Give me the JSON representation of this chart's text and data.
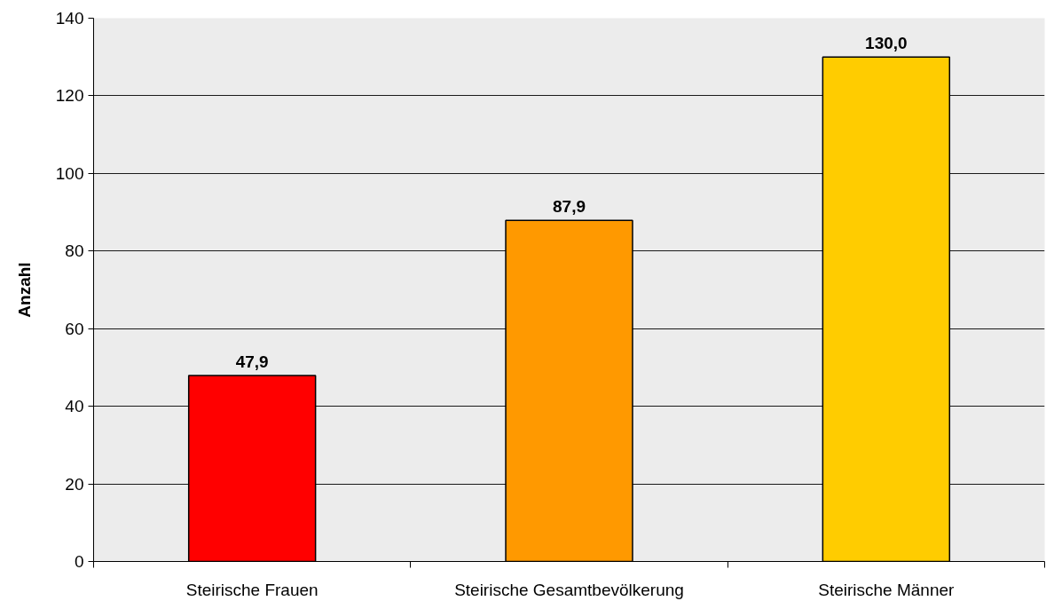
{
  "chart_data": {
    "type": "bar",
    "ylabel": "Anzahl",
    "categories": [
      "Steirische Frauen",
      "Steirische Gesamtbevölkerung",
      "Steirische Männer"
    ],
    "values": [
      47.9,
      87.9,
      130.0
    ],
    "colors": [
      "#ff0000",
      "#ff9900",
      "#ffcc00"
    ],
    "value_labels": [
      "47,9",
      "87,9",
      "130,0"
    ],
    "ylim": [
      0,
      140
    ],
    "yticks": [
      0,
      20,
      40,
      60,
      80,
      100,
      120,
      140
    ],
    "grid": "y"
  }
}
